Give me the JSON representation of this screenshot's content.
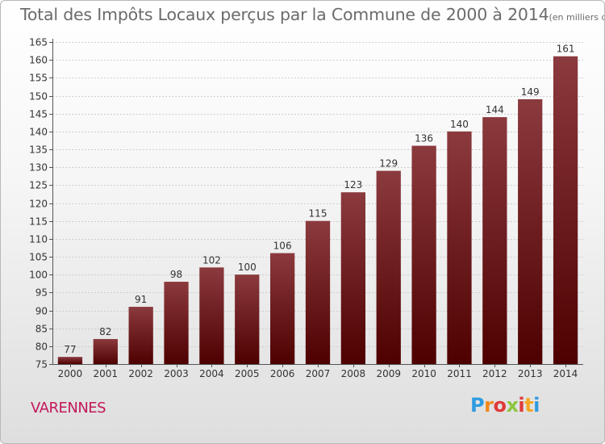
{
  "title": {
    "main": "Total des Impôts Locaux perçus par la Commune de 2000 à 2014",
    "unit": "(en milliers d'€)"
  },
  "commune": "VARENNES",
  "logo": {
    "text": "Proxiti",
    "letters": [
      {
        "ch": "P",
        "color": "#2e9be0"
      },
      {
        "ch": "r",
        "color": "#f08a1c"
      },
      {
        "ch": "o",
        "color": "#e03a3a"
      },
      {
        "ch": "x",
        "color": "#8dc63f"
      },
      {
        "ch": "i",
        "color": "#e03a3a"
      },
      {
        "ch": "t",
        "color": "#f5a623"
      },
      {
        "ch": "i",
        "color": "#2e9be0"
      }
    ]
  },
  "chart_data": {
    "type": "bar",
    "title": "Total des Impôts Locaux perçus par la Commune de 2000 à 2014",
    "xlabel": "",
    "ylabel": "",
    "unit": "en milliers d'€",
    "categories": [
      "2000",
      "2001",
      "2002",
      "2003",
      "2004",
      "2005",
      "2006",
      "2007",
      "2008",
      "2009",
      "2010",
      "2011",
      "2012",
      "2013",
      "2014"
    ],
    "values": [
      77,
      82,
      91,
      98,
      102,
      100,
      106,
      115,
      123,
      129,
      136,
      140,
      144,
      149,
      161
    ],
    "ylim": [
      75,
      165
    ],
    "yticks": [
      75,
      80,
      85,
      90,
      95,
      100,
      105,
      110,
      115,
      120,
      125,
      130,
      135,
      140,
      145,
      150,
      155,
      160,
      165
    ],
    "grid": true,
    "bar_color_top": "#8b3a3e",
    "bar_color_bottom": "#4e0000"
  }
}
